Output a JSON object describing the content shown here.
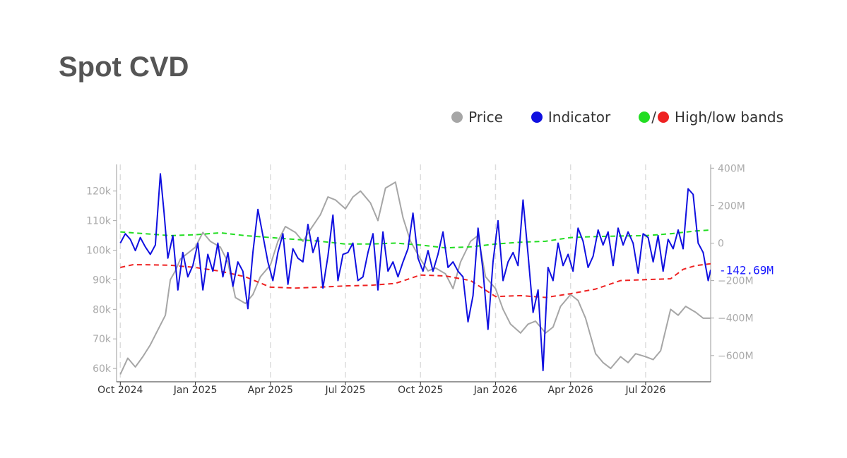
{
  "title": "Spot CVD",
  "legend": {
    "price_label": "Price",
    "indicator_label": "Indicator",
    "bands_slash": "/",
    "bands_label": "High/low bands"
  },
  "colors": {
    "price": "#a6a6a6",
    "indicator": "#1010e0",
    "high_band": "#22dd22",
    "low_band": "#ee2222"
  },
  "chart_data": {
    "type": "line",
    "x_ticks": [
      "Oct 2024",
      "Jan 2025",
      "Apr 2025",
      "Jul 2025",
      "Oct 2025",
      "Jan 2026",
      "Apr 2026",
      "Jul 2026"
    ],
    "x_range": [
      -0.15,
      23.6
    ],
    "left_axis": {
      "ticks": [
        "60k",
        "70k",
        "80k",
        "90k",
        "100k",
        "110k",
        "120k"
      ],
      "tick_values": [
        60000,
        70000,
        80000,
        90000,
        100000,
        110000,
        120000
      ],
      "range": [
        55500,
        129000
      ]
    },
    "right_axis": {
      "ticks": [
        "400M",
        "200M",
        "0",
        "−200M",
        "−400M",
        "−600M"
      ],
      "tick_values": [
        400,
        200,
        0,
        -200,
        -400,
        -600
      ],
      "unit": "M",
      "range": [
        -740,
        420
      ]
    },
    "last_value_label": "-142.69M",
    "last_value": -142.69,
    "series": [
      {
        "name": "Price",
        "axis": "left",
        "x": [
          0,
          0.3,
          0.6,
          0.9,
          1.2,
          1.5,
          1.8,
          2.0,
          2.2,
          2.4,
          2.7,
          3.0,
          3.3,
          3.6,
          4.0,
          4.3,
          4.6,
          5.0,
          5.3,
          5.6,
          6.0,
          6.3,
          6.6,
          7.0,
          7.3,
          7.6,
          8.0,
          8.3,
          8.6,
          9.0,
          9.3,
          9.6,
          10.0,
          10.3,
          10.6,
          11.0,
          11.3,
          11.6,
          12.0,
          12.3,
          12.6,
          13.0,
          13.3,
          13.6,
          14.0,
          14.3,
          14.6,
          15.0,
          15.3,
          15.6,
          16.0,
          16.3,
          16.6,
          17.0,
          17.3,
          17.6,
          18.0,
          18.3,
          18.6,
          19.0,
          19.3,
          19.6,
          20.0,
          20.3,
          20.6,
          21.0,
          21.3,
          21.6,
          22.0,
          22.3,
          22.6,
          23.0,
          23.3,
          23.6
        ],
        "y": [
          58000,
          63500,
          60500,
          64000,
          68000,
          73000,
          78000,
          90000,
          93000,
          97000,
          99000,
          101000,
          106000,
          103000,
          101000,
          96000,
          84000,
          82000,
          85000,
          91000,
          95000,
          103000,
          108000,
          106000,
          103000,
          107000,
          112000,
          118000,
          117000,
          114000,
          118000,
          120000,
          116000,
          110000,
          121000,
          123000,
          111000,
          103000,
          97000,
          93000,
          94000,
          92000,
          87000,
          96000,
          103000,
          105000,
          91000,
          87000,
          80000,
          75000,
          72000,
          75000,
          76000,
          72000,
          74000,
          81000,
          85000,
          83000,
          77000,
          65000,
          62000,
          60000,
          64000,
          62000,
          65000,
          64000,
          63000,
          66000,
          80000,
          78000,
          81000,
          79000,
          77000,
          77000
        ]
      },
      {
        "name": "Indicator",
        "axis": "right",
        "x": [
          0,
          0.2,
          0.4,
          0.6,
          0.8,
          1.0,
          1.2,
          1.4,
          1.6,
          1.75,
          1.9,
          2.1,
          2.3,
          2.5,
          2.7,
          2.9,
          3.1,
          3.3,
          3.5,
          3.7,
          3.9,
          4.1,
          4.3,
          4.5,
          4.7,
          4.9,
          5.1,
          5.3,
          5.5,
          5.7,
          5.9,
          6.1,
          6.3,
          6.5,
          6.7,
          6.9,
          7.1,
          7.3,
          7.5,
          7.7,
          7.9,
          8.1,
          8.3,
          8.5,
          8.7,
          8.9,
          9.1,
          9.3,
          9.5,
          9.7,
          9.9,
          10.1,
          10.3,
          10.5,
          10.7,
          10.9,
          11.1,
          11.3,
          11.5,
          11.7,
          11.9,
          12.1,
          12.3,
          12.5,
          12.7,
          12.9,
          13.1,
          13.3,
          13.5,
          13.7,
          13.9,
          14.1,
          14.3,
          14.5,
          14.7,
          14.9,
          15.1,
          15.3,
          15.5,
          15.7,
          15.9,
          16.1,
          16.3,
          16.5,
          16.7,
          16.9,
          17.1,
          17.3,
          17.5,
          17.7,
          17.9,
          18.1,
          18.3,
          18.5,
          18.7,
          18.9,
          19.1,
          19.3,
          19.5,
          19.7,
          19.9,
          20.1,
          20.3,
          20.5,
          20.7,
          20.9,
          21.1,
          21.3,
          21.5,
          21.7,
          21.9,
          22.1,
          22.3,
          22.5,
          22.7,
          22.9,
          23.1,
          23.3,
          23.5,
          23.6
        ],
        "y": [
          0,
          50,
          20,
          -40,
          30,
          -20,
          -60,
          -10,
          370,
          160,
          -80,
          40,
          -250,
          -50,
          -180,
          -120,
          0,
          -250,
          -60,
          -150,
          0,
          -180,
          -50,
          -230,
          -100,
          -150,
          -350,
          -50,
          180,
          40,
          -100,
          -200,
          -50,
          50,
          -220,
          -30,
          -80,
          -100,
          100,
          -50,
          30,
          -240,
          -70,
          150,
          -200,
          -60,
          -50,
          0,
          -200,
          -180,
          -50,
          50,
          -250,
          60,
          -150,
          -100,
          -180,
          -100,
          -30,
          160,
          -80,
          -150,
          -40,
          -150,
          -60,
          60,
          -130,
          -100,
          -150,
          -180,
          -420,
          -280,
          80,
          -150,
          -460,
          -100,
          120,
          -200,
          -100,
          -50,
          -120,
          230,
          -60,
          -370,
          -250,
          -680,
          -130,
          -200,
          0,
          -120,
          -60,
          -150,
          80,
          10,
          -130,
          -70,
          70,
          -10,
          60,
          -120,
          80,
          -10,
          60,
          0,
          -160,
          50,
          30,
          -100,
          40,
          -150,
          20,
          -30,
          70,
          -30,
          290,
          260,
          0,
          -50,
          -200,
          -142.69
        ]
      },
      {
        "name": "High band",
        "axis": "right",
        "dashed": true,
        "x": [
          0,
          1,
          2,
          3,
          4,
          5,
          6,
          7,
          8,
          9,
          10,
          11,
          12,
          13,
          14,
          15,
          16,
          17,
          18,
          19,
          20,
          21,
          22,
          23,
          23.6
        ],
        "y": [
          60,
          50,
          40,
          45,
          55,
          40,
          30,
          20,
          10,
          -5,
          -5,
          0,
          -10,
          -25,
          -20,
          -5,
          5,
          10,
          30,
          35,
          38,
          40,
          50,
          65,
          70
        ]
      },
      {
        "name": "Low band",
        "axis": "right",
        "dashed": true,
        "x": [
          0,
          0.5,
          1,
          2,
          3,
          4,
          5,
          6,
          7,
          8,
          9,
          10,
          11,
          12,
          13,
          14,
          15,
          16,
          17,
          18,
          19,
          20,
          21,
          22,
          22.5,
          23,
          23.6
        ],
        "y": [
          -130,
          -115,
          -115,
          -118,
          -130,
          -150,
          -180,
          -235,
          -240,
          -235,
          -228,
          -225,
          -215,
          -170,
          -175,
          -200,
          -285,
          -280,
          -290,
          -270,
          -245,
          -200,
          -195,
          -190,
          -140,
          -120,
          -110
        ]
      }
    ]
  }
}
